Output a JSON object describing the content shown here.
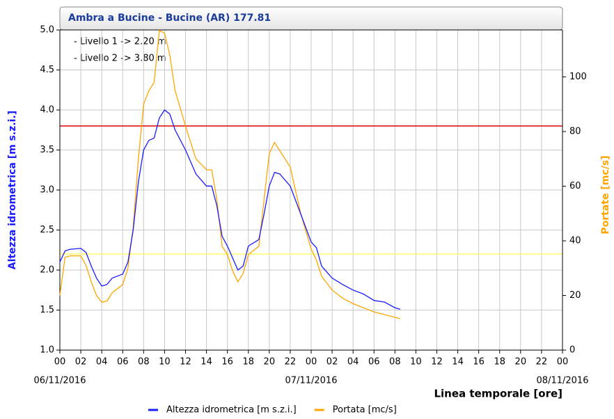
{
  "chart_data": {
    "type": "line",
    "title": "Ambra a Bucine - Bucine (AR) 177.81",
    "x_label": "Linea temporale [ore]",
    "y_label": "Altezza idrometrica [m s.z.i.]",
    "y2_label": "Portate [mc/s]",
    "annotations": [
      "- Livello 1 -> 2.20 m",
      "- Livello 2 -> 3.80 m"
    ],
    "thresholds": [
      {
        "value": 2.2,
        "color": "#ffff66"
      },
      {
        "value": 3.8,
        "color": "#e00000"
      }
    ],
    "x": [
      0,
      0.5,
      1,
      2,
      2.5,
      3,
      3.5,
      4,
      4.5,
      5,
      6,
      6.5,
      7,
      7.5,
      8,
      8.5,
      9,
      9.5,
      10,
      10.5,
      11,
      12,
      13,
      14,
      14.5,
      15,
      15.5,
      16,
      16.5,
      17,
      17.5,
      18,
      19,
      19.5,
      20,
      20.5,
      21,
      22,
      23,
      24,
      24.5,
      25,
      26,
      27,
      28,
      29,
      30,
      31,
      32,
      32.5
    ],
    "series": [
      {
        "name": "Altezza idrometrica [m s.z.i.]",
        "color": "#1a1aff",
        "axis": "y",
        "values": [
          2.1,
          2.24,
          2.26,
          2.27,
          2.22,
          2.05,
          1.9,
          1.8,
          1.82,
          1.9,
          1.95,
          2.1,
          2.5,
          3.1,
          3.5,
          3.62,
          3.65,
          3.9,
          4.0,
          3.95,
          3.75,
          3.5,
          3.2,
          3.05,
          3.05,
          2.8,
          2.42,
          2.3,
          2.15,
          2.0,
          2.05,
          2.3,
          2.38,
          2.7,
          3.05,
          3.22,
          3.2,
          3.05,
          2.7,
          2.35,
          2.28,
          2.05,
          1.9,
          1.82,
          1.75,
          1.7,
          1.62,
          1.6,
          1.53,
          1.51
        ]
      },
      {
        "name": "Portata [mc/s]",
        "color": "#ffa500",
        "axis": "y2",
        "values": [
          20,
          34,
          34.5,
          34.5,
          31,
          25,
          20,
          17.5,
          18,
          21,
          24,
          30,
          45,
          70,
          90,
          95,
          98,
          117,
          116,
          108,
          95,
          82,
          70,
          66,
          66,
          55,
          38,
          35,
          29,
          25,
          28,
          35,
          38,
          55,
          72,
          76,
          73,
          67,
          50,
          37,
          33,
          27,
          22,
          19,
          17,
          15.5,
          14,
          13,
          12,
          11.5
        ]
      }
    ],
    "xlim": [
      0,
      48
    ],
    "xticks": [
      {
        "value": 0,
        "label": "00"
      },
      {
        "value": 2,
        "label": "02"
      },
      {
        "value": 4,
        "label": "04"
      },
      {
        "value": 6,
        "label": "06"
      },
      {
        "value": 8,
        "label": "08"
      },
      {
        "value": 10,
        "label": "10"
      },
      {
        "value": 12,
        "label": "12"
      },
      {
        "value": 14,
        "label": "14"
      },
      {
        "value": 16,
        "label": "16"
      },
      {
        "value": 18,
        "label": "18"
      },
      {
        "value": 20,
        "label": "20"
      },
      {
        "value": 22,
        "label": "22"
      },
      {
        "value": 24,
        "label": "00"
      },
      {
        "value": 26,
        "label": "02"
      },
      {
        "value": 28,
        "label": "04"
      },
      {
        "value": 30,
        "label": "06"
      },
      {
        "value": 32,
        "label": "08"
      },
      {
        "value": 34,
        "label": "10"
      },
      {
        "value": 36,
        "label": "12"
      },
      {
        "value": 38,
        "label": "14"
      },
      {
        "value": 40,
        "label": "16"
      },
      {
        "value": 42,
        "label": "18"
      },
      {
        "value": 44,
        "label": "20"
      },
      {
        "value": 46,
        "label": "22"
      },
      {
        "value": 48,
        "label": "00"
      }
    ],
    "date_labels": [
      {
        "value": 0,
        "label": "06/11/2016"
      },
      {
        "value": 24,
        "label": "07/11/2016"
      },
      {
        "value": 48,
        "label": "08/11/2016"
      }
    ],
    "ylim": [
      1,
      5
    ],
    "yticks": [
      {
        "value": 1,
        "label": "1.0"
      },
      1.5,
      {
        "value": 2,
        "label": "2.0"
      },
      2.5,
      {
        "value": 3,
        "label": "3.0"
      },
      3.5,
      {
        "value": 4,
        "label": "4.0"
      },
      4.5,
      {
        "value": 5,
        "label": "5.0"
      }
    ],
    "y2lim": [
      0,
      117.2
    ],
    "y2ticks": [
      0,
      20,
      40,
      60,
      80,
      100
    ],
    "grid": true
  }
}
